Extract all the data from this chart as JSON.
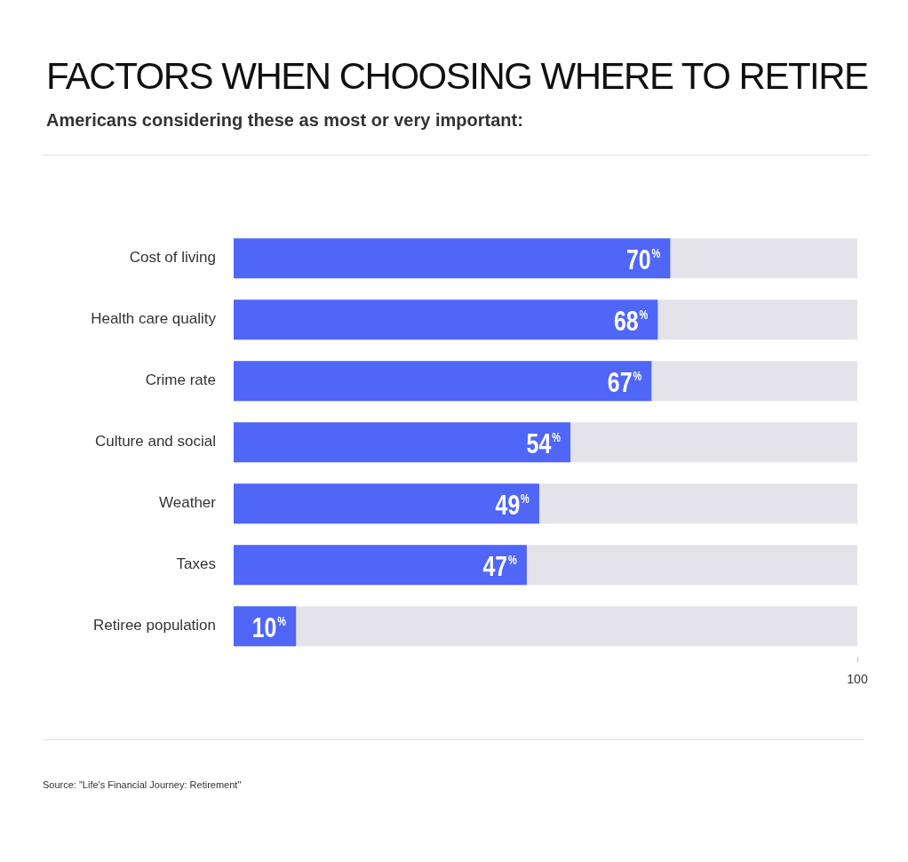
{
  "chart_data": {
    "type": "bar",
    "orientation": "horizontal",
    "title": "FACTORS WHEN CHOOSING WHERE TO RETIRE",
    "subtitle": "Americans considering these as most or very important:",
    "categories": [
      "Cost of living",
      "Health care quality",
      "Crime rate",
      "Culture and social",
      "Weather",
      "Taxes",
      "Retiree population"
    ],
    "values": [
      70,
      68,
      67,
      54,
      49,
      47,
      10
    ],
    "value_labels": [
      "70%",
      "68%",
      "67%",
      "54%",
      "49%",
      "47%",
      "10%"
    ],
    "color": "#4f66f7",
    "xlim": [
      0,
      100
    ],
    "xticks": [
      100
    ],
    "grid": false,
    "legend": false,
    "annotations": [
      "Source: \"Life's Financial Journey: Retirement\""
    ]
  }
}
